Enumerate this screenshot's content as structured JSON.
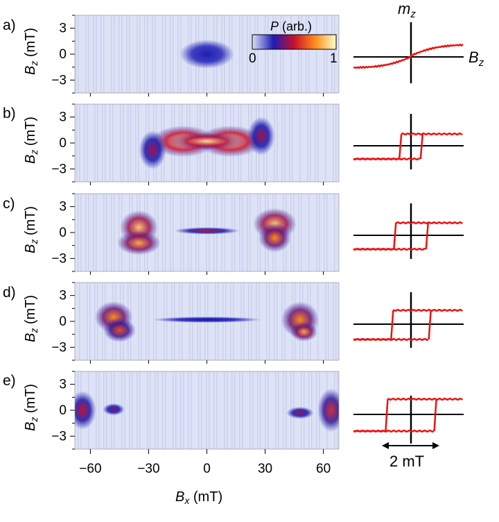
{
  "figure": {
    "colorbar": {
      "label_italic": "P",
      "label_rest": " (arb.)",
      "min_label": "0",
      "max_label": "1",
      "colors": [
        "#dce0f4",
        "#1c1cb4",
        "#c8102e",
        "#ff8c1a",
        "#ffffc8"
      ]
    },
    "x_axis": {
      "label_italic": "B",
      "label_sub": "x",
      "label_unit": " (mT)",
      "ticks": [
        "−60",
        "−30",
        "0",
        "30",
        "60"
      ],
      "tick_values": [
        -60,
        -30,
        0,
        30,
        60
      ],
      "range": [
        -68,
        68
      ]
    },
    "y_axis": {
      "label_italic": "B",
      "label_sub": "z",
      "label_unit": " (mT)",
      "ticks": [
        "3",
        "0",
        "−3"
      ],
      "tick_values": [
        3,
        0,
        -3
      ],
      "range": [
        -4.5,
        4.5
      ]
    },
    "loops_axes": {
      "m_label": "m",
      "m_sub": "z",
      "b_label": "B",
      "b_sub": "z",
      "scale_bar_label": "2 mT",
      "scale_bar_value_mT": 2
    },
    "colors": {
      "loop_line": "#ee1111",
      "background": "#dde2f5"
    }
  },
  "chart_data": [
    {
      "type": "heatmap",
      "panel": "a)",
      "title": "",
      "xlabel": "B_x (mT)",
      "ylabel": "B_z (mT)",
      "xlim": [
        -68,
        68
      ],
      "ylim": [
        -4.5,
        4.5
      ],
      "blobs": [
        {
          "x": 0,
          "y": 0,
          "sx": 10,
          "sy": 1.2,
          "intensity": 0.18
        }
      ],
      "loop": {
        "type": "line",
        "shape": "s-curve",
        "coercive_mT": 0,
        "note_x_units": "mT relative to scale bar"
      }
    },
    {
      "type": "heatmap",
      "panel": "b)",
      "xlabel": "B_x (mT)",
      "ylabel": "B_z (mT)",
      "xlim": [
        -68,
        68
      ],
      "ylim": [
        -4.5,
        4.5
      ],
      "blobs": [
        {
          "x": -12,
          "y": 0.2,
          "sx": 12,
          "sy": 1.3,
          "intensity": 1.0
        },
        {
          "x": 12,
          "y": 0.2,
          "sx": 12,
          "sy": 1.3,
          "intensity": 1.0
        },
        {
          "x": 0,
          "y": 0.2,
          "sx": 14,
          "sy": 0.7,
          "intensity": 0.95
        },
        {
          "x": -28,
          "y": -0.8,
          "sx": 5,
          "sy": 1.6,
          "intensity": 0.55
        },
        {
          "x": 28,
          "y": 0.8,
          "sx": 5,
          "sy": 1.6,
          "intensity": 0.55
        }
      ],
      "loop": {
        "type": "line",
        "coercive_mT": 0.35
      }
    },
    {
      "type": "heatmap",
      "panel": "c)",
      "xlabel": "B_x (mT)",
      "ylabel": "B_z (mT)",
      "xlim": [
        -68,
        68
      ],
      "ylim": [
        -4.5,
        4.5
      ],
      "blobs": [
        {
          "x": -35,
          "y": 0.6,
          "sx": 7,
          "sy": 1.4,
          "intensity": 0.9
        },
        {
          "x": -35,
          "y": -1.2,
          "sx": 8,
          "sy": 1.0,
          "intensity": 0.85
        },
        {
          "x": 35,
          "y": 1.0,
          "sx": 8,
          "sy": 1.3,
          "intensity": 0.9
        },
        {
          "x": 35,
          "y": -0.6,
          "sx": 6,
          "sy": 1.2,
          "intensity": 0.8
        },
        {
          "x": 0,
          "y": 0.2,
          "sx": 12,
          "sy": 0.3,
          "intensity": 0.6
        }
      ],
      "loop": {
        "type": "line",
        "coercive_mT": 0.55
      }
    },
    {
      "type": "heatmap",
      "panel": "d)",
      "xlabel": "B_x (mT)",
      "ylabel": "B_z (mT)",
      "xlim": [
        -68,
        68
      ],
      "ylim": [
        -4.5,
        4.5
      ],
      "blobs": [
        {
          "x": -48,
          "y": 0.5,
          "sx": 7,
          "sy": 1.3,
          "intensity": 0.8
        },
        {
          "x": -45,
          "y": -1.0,
          "sx": 6,
          "sy": 1.0,
          "intensity": 0.7
        },
        {
          "x": 48,
          "y": 0.2,
          "sx": 7,
          "sy": 1.5,
          "intensity": 0.8
        },
        {
          "x": 50,
          "y": -1.2,
          "sx": 5,
          "sy": 0.8,
          "intensity": 0.85
        },
        {
          "x": 0,
          "y": 0.2,
          "sx": 20,
          "sy": 0.25,
          "intensity": 0.35
        }
      ],
      "loop": {
        "type": "line",
        "coercive_mT": 0.65
      }
    },
    {
      "type": "heatmap",
      "panel": "e)",
      "xlabel": "B_x (mT)",
      "ylabel": "B_z (mT)",
      "xlim": [
        -68,
        68
      ],
      "ylim": [
        -4.5,
        4.5
      ],
      "blobs": [
        {
          "x": -64,
          "y": 0.0,
          "sx": 5,
          "sy": 1.6,
          "intensity": 0.6
        },
        {
          "x": -48,
          "y": 0.1,
          "sx": 4,
          "sy": 0.5,
          "intensity": 0.5
        },
        {
          "x": 64,
          "y": 0.0,
          "sx": 5,
          "sy": 1.8,
          "intensity": 0.65
        },
        {
          "x": 48,
          "y": -0.3,
          "sx": 5,
          "sy": 0.5,
          "intensity": 0.55
        }
      ],
      "loop": {
        "type": "line",
        "coercive_mT": 0.85
      }
    }
  ]
}
